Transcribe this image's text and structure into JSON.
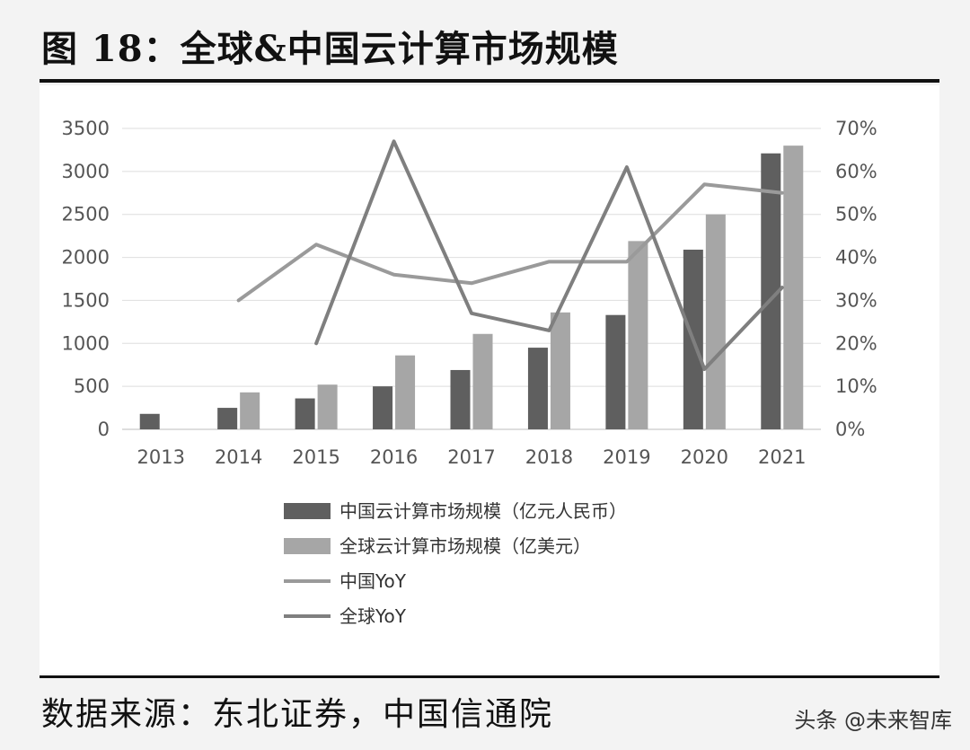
{
  "figure": {
    "title": "图 18：全球&中国云计算市场规模",
    "source": "数据来源：东北证券，中国信通院",
    "watermark": "头条 @未来智库"
  },
  "chart_data": {
    "type": "bar",
    "title": "",
    "categories": [
      "2013",
      "2014",
      "2015",
      "2016",
      "2017",
      "2018",
      "2019",
      "2020",
      "2021"
    ],
    "series": [
      {
        "name": "中国云计算市场规模（亿元人民币）",
        "kind": "bar",
        "axis": "left",
        "color": "#5f5f5f",
        "values": [
          180,
          250,
          360,
          500,
          690,
          950,
          1330,
          2090,
          3210
        ]
      },
      {
        "name": "全球云计算市场规模（亿美元）",
        "kind": "bar",
        "axis": "left",
        "color": "#a6a6a6",
        "values": [
          null,
          430,
          520,
          860,
          1110,
          1360,
          2190,
          2500,
          3300
        ]
      },
      {
        "name": "中国YoY",
        "kind": "line",
        "axis": "right",
        "color": "#9a9a9a",
        "values": [
          null,
          30,
          43,
          36,
          34,
          39,
          39,
          57,
          55
        ]
      },
      {
        "name": "全球YoY",
        "kind": "line",
        "axis": "right",
        "color": "#7f7f7f",
        "values": [
          null,
          null,
          20,
          67,
          27,
          23,
          61,
          14,
          33
        ]
      }
    ],
    "left_axis": {
      "ylim": [
        0,
        3500
      ],
      "ticks": [
        "0",
        "500",
        "1000",
        "1500",
        "2000",
        "2500",
        "3000",
        "3500"
      ]
    },
    "right_axis": {
      "ylim": [
        0,
        70
      ],
      "ticks": [
        "0%",
        "10%",
        "20%",
        "30%",
        "40%",
        "50%",
        "60%",
        "70%"
      ]
    },
    "grid": true,
    "legend_position": "bottom"
  }
}
